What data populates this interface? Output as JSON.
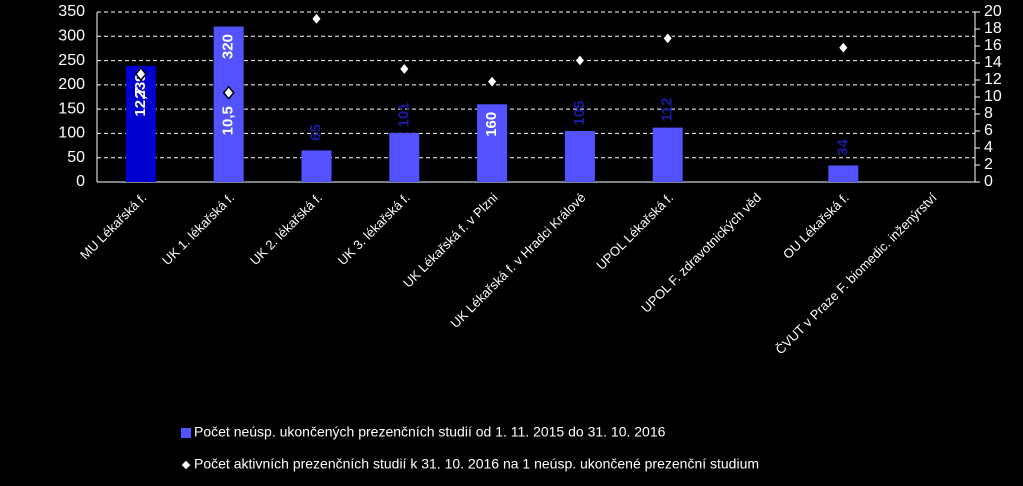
{
  "chart_data": {
    "type": "bar",
    "categories": [
      "MU Lékařská f.",
      "UK 1. lékařská f.",
      "UK 2. lékařská f.",
      "UK 3. lékařská f.",
      "UK Lékařská f. v Plzni",
      "UK Lékařská f. v Hradci Králové",
      "UPOL Lékařská f.",
      "UPOL F. zdravotnických věd",
      "OU Lékařská f.",
      "ČVUT v Praze F. biomedic. inženýrství"
    ],
    "series": [
      {
        "name": "Počet neúsp. ukončených prezenčních studií od 1. 11. 2015 do 31. 10. 2016",
        "type": "bar",
        "color": "#5252ff",
        "colors": [
          "#0000d0",
          "#5252ff",
          "#5252ff",
          "#5252ff",
          "#5252ff",
          "#5252ff",
          "#5252ff",
          "#5252ff",
          "#5252ff",
          "#5252ff"
        ],
        "values": [
          239,
          320,
          65,
          101,
          160,
          105,
          112,
          null,
          34,
          null
        ]
      },
      {
        "name": "Počet aktivních prezenčních studií k 31. 10. 2016 na 1 neúsp. ukončené prezenční studium",
        "type": "scatter",
        "axis": "y2",
        "color": "#ffffff",
        "values": [
          12.7,
          10.5,
          19.2,
          13.3,
          11.8,
          14.3,
          16.9,
          null,
          15.8,
          null
        ],
        "value_labels": [
          "12,7",
          "10,5",
          null,
          null,
          null,
          null,
          null,
          null,
          null,
          null
        ]
      }
    ],
    "ylim": [
      0,
      350
    ],
    "yticks": [
      0,
      50,
      100,
      150,
      200,
      250,
      300,
      350
    ],
    "y2lim": [
      0,
      20
    ],
    "y2ticks": [
      0,
      2,
      4,
      6,
      8,
      10,
      12,
      14,
      16,
      18,
      20
    ],
    "grid": true,
    "legend": "bottom"
  }
}
